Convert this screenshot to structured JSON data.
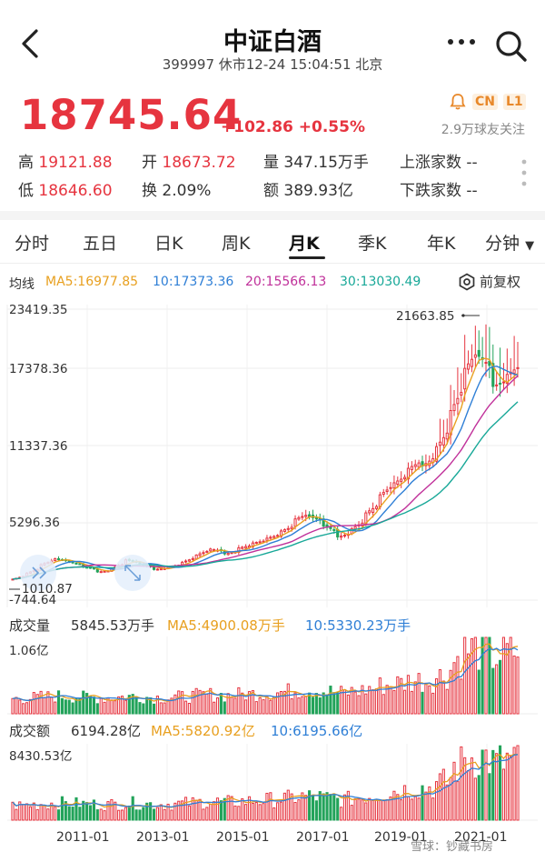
{
  "header": {
    "title": "中证白酒",
    "subtitle": "399997 休市12-24 15:04:51 北京",
    "price": "18745.64",
    "change": "+102.86",
    "change_pct": "+0.55%",
    "badge_cn": "CN",
    "badge_l1": "L1",
    "follow": "2.9万球友关注"
  },
  "stats": {
    "high_label": "高",
    "high": "19121.88",
    "open_label": "开",
    "open": "18673.72",
    "vol_label": "量",
    "vol": "347.15万手",
    "up_label": "上涨家数",
    "up": "--",
    "low_label": "低",
    "low": "18646.60",
    "turn_label": "换",
    "turn": "2.09%",
    "amt_label": "额",
    "amt": "389.93亿",
    "down_label": "下跌家数",
    "down": "--"
  },
  "tabs": [
    "分时",
    "五日",
    "日K",
    "周K",
    "月K",
    "季K",
    "年K",
    "分钟"
  ],
  "active_tab": "月K",
  "ma_legend": {
    "label": "均线",
    "ma5": "MA5:16977.85",
    "ma10": "10:17373.36",
    "ma20": "20:15566.13",
    "ma30": "30:13030.49",
    "adjust": "前复权"
  },
  "colors": {
    "up": "#e6343f",
    "down": "#22a35a",
    "ma5": "#e8a020",
    "ma10": "#2f7fd6",
    "ma20": "#c0309a",
    "ma30": "#18a898"
  },
  "price_axis": [
    "23419.35",
    "17378.36",
    "11337.36",
    "5296.36",
    "-744.64"
  ],
  "annotations": {
    "max": "21663.85",
    "min": "1010.87"
  },
  "volume": {
    "label": "成交量",
    "value": "5845.53万手",
    "ma5": "MA5:4900.08万手",
    "ma10": "10:5330.23万手",
    "axis_max": "1.06亿"
  },
  "amount": {
    "label": "成交额",
    "value": "6194.28亿",
    "ma5": "MA5:5820.92亿",
    "ma10": "10:6195.66亿",
    "axis_max": "8430.53亿"
  },
  "x_axis": [
    "2011-01",
    "2013-01",
    "2015-01",
    "2017-01",
    "2019-01",
    "2021-01"
  ],
  "watermark": "雪球：钞藏书房",
  "chart_data": {
    "type": "candlestick",
    "ylim": [
      -744.64,
      23419.35
    ],
    "close_by_month": [
      [
        1000,
        1300
      ],
      [
        1500,
        1900
      ],
      [
        2200,
        2600
      ],
      [
        2700,
        2500
      ],
      [
        2400,
        2200
      ],
      [
        2000,
        1800
      ],
      [
        1600,
        1700
      ],
      [
        1900,
        2300
      ],
      [
        2600,
        2400
      ],
      [
        2200,
        2000
      ],
      [
        1800,
        1900
      ],
      [
        2000,
        2200
      ],
      [
        2400,
        2800
      ],
      [
        3000,
        3400
      ],
      [
        3500,
        3300
      ],
      [
        3100,
        3300
      ],
      [
        3600,
        3800
      ],
      [
        4000,
        4200
      ],
      [
        4400,
        4700
      ],
      [
        5000,
        5400
      ],
      [
        6000,
        6400
      ],
      [
        6200,
        5800
      ],
      [
        5400,
        5000
      ],
      [
        4500,
        4800
      ],
      [
        5200,
        5800
      ],
      [
        6500,
        7200
      ],
      [
        8000,
        8800
      ],
      [
        9000,
        9600
      ],
      [
        10200,
        10800
      ],
      [
        10400,
        11200
      ],
      [
        12000,
        13500
      ],
      [
        15000,
        17000
      ],
      [
        18500,
        20000
      ],
      [
        19500,
        18500
      ],
      [
        17000,
        17500
      ],
      [
        18000,
        18745.64
      ]
    ]
  }
}
